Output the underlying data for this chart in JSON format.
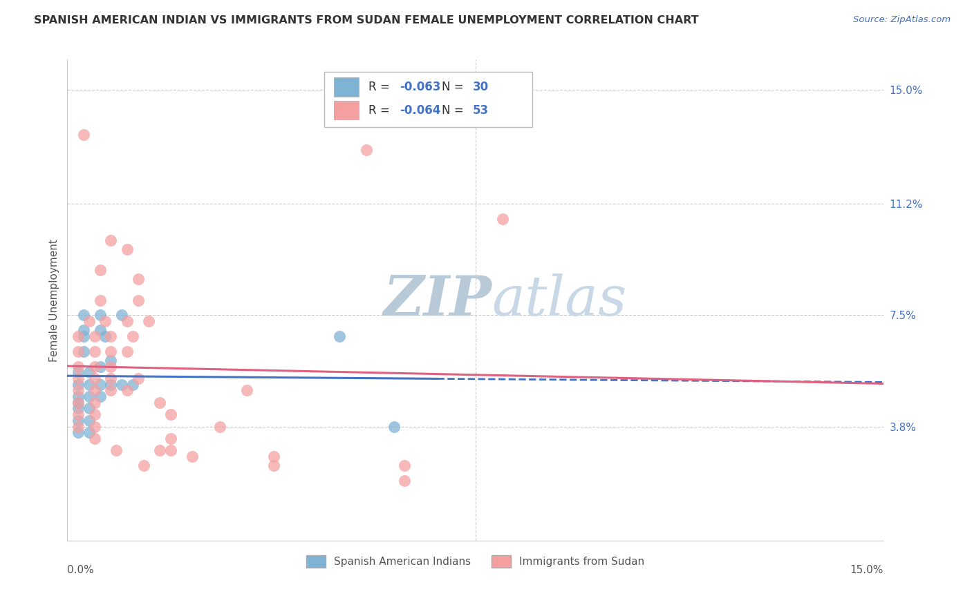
{
  "title": "SPANISH AMERICAN INDIAN VS IMMIGRANTS FROM SUDAN FEMALE UNEMPLOYMENT CORRELATION CHART",
  "source": "Source: ZipAtlas.com",
  "ylabel": "Female Unemployment",
  "right_yticks": [
    "15.0%",
    "11.2%",
    "7.5%",
    "3.8%"
  ],
  "right_ytick_vals": [
    0.15,
    0.112,
    0.075,
    0.038
  ],
  "legend1_r": "-0.063",
  "legend1_n": "30",
  "legend2_r": "-0.064",
  "legend2_n": "53",
  "blue_color": "#7fb3d3",
  "pink_color": "#f4a0a0",
  "blue_line_color": "#4472c4",
  "pink_line_color": "#e06080",
  "blue_scatter": [
    [
      0.003,
      0.068
    ],
    [
      0.007,
      0.068
    ],
    [
      0.003,
      0.075
    ],
    [
      0.006,
      0.075
    ],
    [
      0.01,
      0.075
    ],
    [
      0.003,
      0.07
    ],
    [
      0.006,
      0.07
    ],
    [
      0.003,
      0.063
    ],
    [
      0.006,
      0.058
    ],
    [
      0.002,
      0.052
    ],
    [
      0.004,
      0.052
    ],
    [
      0.006,
      0.052
    ],
    [
      0.008,
      0.052
    ],
    [
      0.01,
      0.052
    ],
    [
      0.012,
      0.052
    ],
    [
      0.002,
      0.056
    ],
    [
      0.004,
      0.056
    ],
    [
      0.002,
      0.048
    ],
    [
      0.004,
      0.048
    ],
    [
      0.006,
      0.048
    ],
    [
      0.002,
      0.044
    ],
    [
      0.004,
      0.044
    ],
    [
      0.002,
      0.04
    ],
    [
      0.004,
      0.04
    ],
    [
      0.002,
      0.036
    ],
    [
      0.004,
      0.036
    ],
    [
      0.05,
      0.068
    ],
    [
      0.06,
      0.038
    ],
    [
      0.002,
      0.046
    ],
    [
      0.008,
      0.06
    ]
  ],
  "pink_scatter": [
    [
      0.003,
      0.135
    ],
    [
      0.055,
      0.13
    ],
    [
      0.008,
      0.1
    ],
    [
      0.011,
      0.097
    ],
    [
      0.006,
      0.09
    ],
    [
      0.013,
      0.087
    ],
    [
      0.006,
      0.08
    ],
    [
      0.013,
      0.08
    ],
    [
      0.004,
      0.073
    ],
    [
      0.007,
      0.073
    ],
    [
      0.011,
      0.073
    ],
    [
      0.015,
      0.073
    ],
    [
      0.002,
      0.068
    ],
    [
      0.005,
      0.068
    ],
    [
      0.008,
      0.068
    ],
    [
      0.012,
      0.068
    ],
    [
      0.002,
      0.063
    ],
    [
      0.005,
      0.063
    ],
    [
      0.008,
      0.063
    ],
    [
      0.011,
      0.063
    ],
    [
      0.002,
      0.058
    ],
    [
      0.005,
      0.058
    ],
    [
      0.008,
      0.058
    ],
    [
      0.002,
      0.054
    ],
    [
      0.005,
      0.054
    ],
    [
      0.008,
      0.054
    ],
    [
      0.013,
      0.054
    ],
    [
      0.002,
      0.05
    ],
    [
      0.005,
      0.05
    ],
    [
      0.008,
      0.05
    ],
    [
      0.011,
      0.05
    ],
    [
      0.002,
      0.046
    ],
    [
      0.005,
      0.046
    ],
    [
      0.017,
      0.046
    ],
    [
      0.002,
      0.042
    ],
    [
      0.005,
      0.042
    ],
    [
      0.019,
      0.042
    ],
    [
      0.002,
      0.038
    ],
    [
      0.005,
      0.038
    ],
    [
      0.005,
      0.034
    ],
    [
      0.019,
      0.034
    ],
    [
      0.009,
      0.03
    ],
    [
      0.019,
      0.03
    ],
    [
      0.014,
      0.025
    ],
    [
      0.028,
      0.038
    ],
    [
      0.033,
      0.05
    ],
    [
      0.038,
      0.025
    ],
    [
      0.08,
      0.107
    ],
    [
      0.062,
      0.02
    ],
    [
      0.062,
      0.025
    ],
    [
      0.038,
      0.028
    ],
    [
      0.023,
      0.028
    ],
    [
      0.017,
      0.03
    ]
  ],
  "xlim": [
    0.0,
    0.15
  ],
  "ylim": [
    0.0,
    0.16
  ],
  "background_color": "#ffffff",
  "watermark_zip": "ZIP",
  "watermark_atlas": "atlas",
  "watermark_color": "#ccd8e4"
}
